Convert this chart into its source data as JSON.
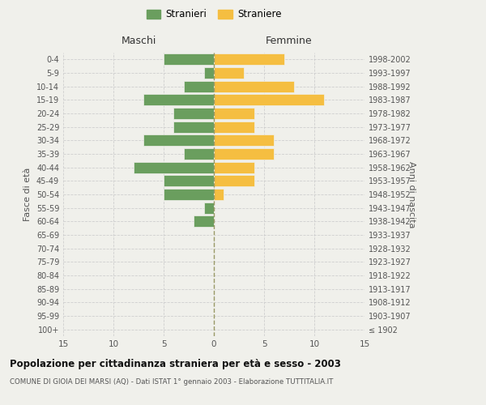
{
  "age_groups": [
    "100+",
    "95-99",
    "90-94",
    "85-89",
    "80-84",
    "75-79",
    "70-74",
    "65-69",
    "60-64",
    "55-59",
    "50-54",
    "45-49",
    "40-44",
    "35-39",
    "30-34",
    "25-29",
    "20-24",
    "15-19",
    "10-14",
    "5-9",
    "0-4"
  ],
  "birth_years": [
    "≤ 1902",
    "1903-1907",
    "1908-1912",
    "1913-1917",
    "1918-1922",
    "1923-1927",
    "1928-1932",
    "1933-1937",
    "1938-1942",
    "1943-1947",
    "1948-1952",
    "1953-1957",
    "1958-1962",
    "1963-1967",
    "1968-1972",
    "1973-1977",
    "1978-1982",
    "1983-1987",
    "1988-1992",
    "1993-1997",
    "1998-2002"
  ],
  "males": [
    0,
    0,
    0,
    0,
    0,
    0,
    0,
    0,
    2,
    1,
    5,
    5,
    8,
    3,
    7,
    4,
    4,
    7,
    3,
    1,
    5
  ],
  "females": [
    0,
    0,
    0,
    0,
    0,
    0,
    0,
    0,
    0,
    0,
    1,
    4,
    4,
    6,
    6,
    4,
    4,
    11,
    8,
    3,
    7
  ],
  "male_color": "#6a9e5e",
  "female_color": "#f5be41",
  "background_color": "#f0f0eb",
  "grid_color": "#cccccc",
  "bar_edge_color": "#f0f0eb",
  "center_line_color": "#999966",
  "title": "Popolazione per cittadinanza straniera per età e sesso - 2003",
  "subtitle": "COMUNE DI GIOIA DEI MARSI (AQ) - Dati ISTAT 1° gennaio 2003 - Elaborazione TUTTITALIA.IT",
  "left_title": "Maschi",
  "right_title": "Femmine",
  "left_yaxis_label": "Fasce di età",
  "right_yaxis_label": "Anni di nascita",
  "legend_stranieri": "Stranieri",
  "legend_straniere": "Straniere",
  "xlim": 15,
  "xticks": [
    -15,
    -10,
    -5,
    0,
    5,
    10,
    15
  ],
  "xticklabels": [
    "15",
    "10",
    "5",
    "0",
    "5",
    "10",
    "15"
  ]
}
